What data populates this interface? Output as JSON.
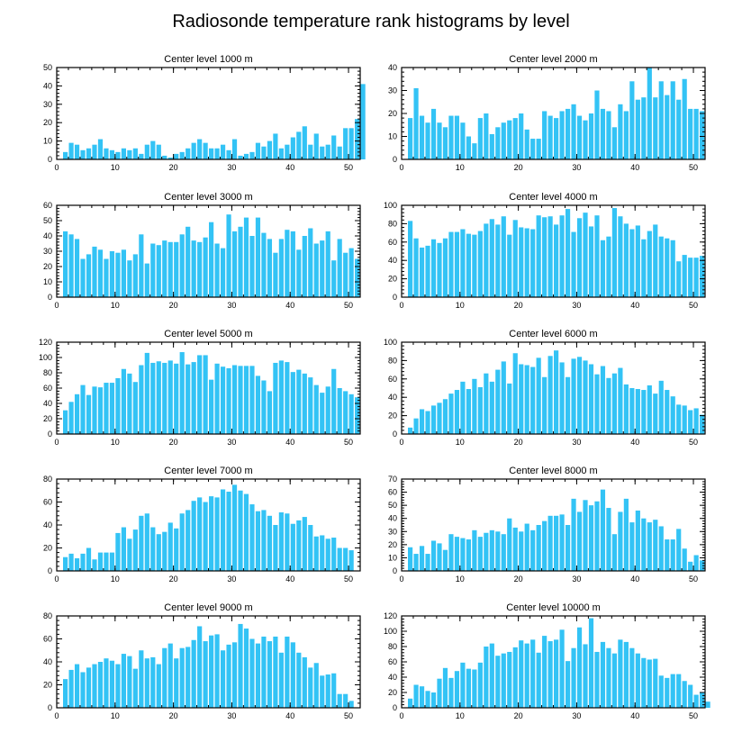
{
  "title": "Radiosonde temperature rank histograms by level",
  "colors": {
    "bar": "#33C3F5",
    "axis": "#000000",
    "background": "#ffffff"
  },
  "chart_data": [
    {
      "type": "bar",
      "title": "Center level 1000 m",
      "xlim": [
        0,
        52
      ],
      "ylim": [
        0,
        50
      ],
      "xticks": [
        0,
        10,
        20,
        30,
        40,
        50
      ],
      "yticks": [
        0,
        10,
        20,
        30,
        40,
        50
      ],
      "values": [
        4,
        9,
        8,
        5,
        6,
        8,
        11,
        6,
        5,
        4,
        6,
        5,
        6,
        3,
        8,
        10,
        8,
        2,
        1,
        3,
        4,
        6,
        9,
        11,
        9,
        6,
        6,
        8,
        5,
        11,
        2,
        3,
        4,
        9,
        7,
        10,
        14,
        6,
        8,
        12,
        15,
        18,
        8,
        14,
        7,
        8,
        13,
        7,
        17,
        17,
        22,
        41
      ]
    },
    {
      "type": "bar",
      "title": "Center level 2000 m",
      "xlim": [
        0,
        52
      ],
      "ylim": [
        0,
        40
      ],
      "xticks": [
        0,
        10,
        20,
        30,
        40,
        50
      ],
      "yticks": [
        0,
        10,
        20,
        30,
        40
      ],
      "values": [
        18,
        31,
        19,
        16,
        22,
        16,
        14,
        19,
        19,
        16,
        10,
        7,
        18,
        20,
        11,
        14,
        16,
        17,
        18,
        20,
        13,
        9,
        9,
        21,
        19,
        18,
        21,
        22,
        24,
        19,
        17,
        20,
        30,
        22,
        21,
        14,
        24,
        21,
        34,
        26,
        27,
        40,
        27,
        34,
        28,
        34,
        26,
        35,
        22,
        22,
        21
      ]
    },
    {
      "type": "bar",
      "title": "Center level 3000 m",
      "xlim": [
        0,
        52
      ],
      "ylim": [
        0,
        60
      ],
      "xticks": [
        0,
        10,
        20,
        30,
        40,
        50
      ],
      "yticks": [
        0,
        10,
        20,
        30,
        40,
        50,
        60
      ],
      "values": [
        43,
        41,
        38,
        25,
        28,
        33,
        31,
        25,
        30,
        29,
        31,
        24,
        28,
        41,
        22,
        35,
        34,
        37,
        36,
        36,
        41,
        46,
        37,
        36,
        39,
        49,
        35,
        32,
        54,
        43,
        46,
        52,
        40,
        52,
        42,
        38,
        29,
        38,
        44,
        43,
        31,
        40,
        45,
        35,
        37,
        43,
        24,
        38,
        29,
        32,
        25
      ]
    },
    {
      "type": "bar",
      "title": "Center level 4000 m",
      "xlim": [
        0,
        52
      ],
      "ylim": [
        0,
        100
      ],
      "xticks": [
        0,
        10,
        20,
        30,
        40,
        50
      ],
      "yticks": [
        0,
        20,
        40,
        60,
        80,
        100
      ],
      "values": [
        83,
        64,
        54,
        56,
        63,
        59,
        64,
        71,
        71,
        74,
        69,
        68,
        72,
        80,
        85,
        79,
        88,
        68,
        84,
        76,
        75,
        74,
        89,
        87,
        88,
        79,
        89,
        96,
        71,
        86,
        92,
        77,
        89,
        62,
        66,
        97,
        88,
        80,
        74,
        78,
        63,
        72,
        79,
        66,
        64,
        62,
        39,
        46,
        43,
        43,
        45
      ]
    },
    {
      "type": "bar",
      "title": "Center level 5000 m",
      "xlim": [
        0,
        52
      ],
      "ylim": [
        0,
        120
      ],
      "xticks": [
        0,
        10,
        20,
        30,
        40,
        50
      ],
      "yticks": [
        0,
        20,
        40,
        60,
        80,
        100,
        120
      ],
      "values": [
        31,
        42,
        52,
        64,
        51,
        62,
        61,
        67,
        67,
        73,
        85,
        79,
        68,
        90,
        106,
        93,
        95,
        93,
        96,
        92,
        107,
        91,
        94,
        103,
        103,
        71,
        92,
        88,
        86,
        90,
        89,
        89,
        89,
        76,
        70,
        56,
        93,
        96,
        94,
        81,
        84,
        79,
        74,
        64,
        54,
        62,
        85,
        60,
        56,
        52,
        48
      ]
    },
    {
      "type": "bar",
      "title": "Center level 6000 m",
      "xlim": [
        0,
        52
      ],
      "ylim": [
        0,
        100
      ],
      "xticks": [
        0,
        10,
        20,
        30,
        40,
        50
      ],
      "yticks": [
        0,
        20,
        40,
        60,
        80,
        100
      ],
      "values": [
        7,
        17,
        27,
        25,
        31,
        34,
        38,
        44,
        48,
        57,
        49,
        60,
        51,
        66,
        57,
        70,
        79,
        55,
        88,
        76,
        75,
        73,
        83,
        62,
        85,
        91,
        78,
        62,
        82,
        84,
        80,
        76,
        65,
        74,
        61,
        66,
        72,
        54,
        50,
        49,
        48,
        53,
        44,
        58,
        48,
        41,
        32,
        31,
        26,
        28,
        21
      ]
    },
    {
      "type": "bar",
      "title": "Center level 7000 m",
      "xlim": [
        0,
        52
      ],
      "ylim": [
        0,
        80
      ],
      "xticks": [
        0,
        10,
        20,
        30,
        40,
        50
      ],
      "yticks": [
        0,
        20,
        40,
        60,
        80
      ],
      "values": [
        12,
        15,
        11,
        15,
        20,
        10,
        16,
        16,
        16,
        33,
        38,
        28,
        36,
        48,
        50,
        38,
        32,
        34,
        42,
        37,
        50,
        53,
        61,
        64,
        60,
        65,
        64,
        71,
        69,
        75,
        70,
        67,
        58,
        52,
        53,
        48,
        40,
        51,
        50,
        41,
        44,
        47,
        40,
        30,
        31,
        28,
        29,
        20,
        20,
        18
      ]
    },
    {
      "type": "bar",
      "title": "Center level 8000 m",
      "xlim": [
        0,
        52
      ],
      "ylim": [
        0,
        70
      ],
      "xticks": [
        0,
        10,
        20,
        30,
        40,
        50
      ],
      "yticks": [
        0,
        10,
        20,
        30,
        40,
        50,
        60,
        70
      ],
      "values": [
        18,
        13,
        19,
        13,
        23,
        21,
        16,
        28,
        26,
        25,
        24,
        31,
        26,
        29,
        31,
        30,
        28,
        40,
        33,
        30,
        36,
        31,
        35,
        38,
        42,
        42,
        43,
        35,
        55,
        45,
        54,
        50,
        53,
        62,
        48,
        28,
        45,
        55,
        37,
        46,
        40,
        37,
        39,
        34,
        24,
        24,
        32,
        17,
        7,
        12,
        8
      ]
    },
    {
      "type": "bar",
      "title": "Center level 9000 m",
      "xlim": [
        0,
        52
      ],
      "ylim": [
        0,
        80
      ],
      "xticks": [
        0,
        10,
        20,
        30,
        40,
        50
      ],
      "yticks": [
        0,
        20,
        40,
        60,
        80
      ],
      "values": [
        25,
        33,
        38,
        31,
        35,
        38,
        40,
        43,
        41,
        38,
        47,
        45,
        34,
        50,
        43,
        44,
        38,
        52,
        56,
        43,
        52,
        53,
        59,
        71,
        58,
        63,
        64,
        50,
        55,
        57,
        73,
        69,
        60,
        56,
        62,
        58,
        62,
        48,
        62,
        57,
        48,
        44,
        35,
        39,
        28,
        29,
        30,
        12,
        12,
        6
      ]
    },
    {
      "type": "bar",
      "title": "Center level 10000 m",
      "xlim": [
        0,
        52
      ],
      "ylim": [
        0,
        120
      ],
      "xticks": [
        0,
        10,
        20,
        30,
        40,
        50
      ],
      "yticks": [
        0,
        20,
        40,
        60,
        80,
        100,
        120
      ],
      "values": [
        12,
        30,
        28,
        22,
        20,
        38,
        52,
        39,
        48,
        59,
        51,
        50,
        59,
        80,
        84,
        68,
        71,
        73,
        79,
        88,
        84,
        89,
        72,
        94,
        87,
        89,
        102,
        61,
        78,
        105,
        83,
        117,
        73,
        86,
        78,
        71,
        89,
        86,
        78,
        71,
        65,
        63,
        64,
        42,
        39,
        44,
        44,
        35,
        30,
        17,
        20,
        8
      ]
    }
  ]
}
